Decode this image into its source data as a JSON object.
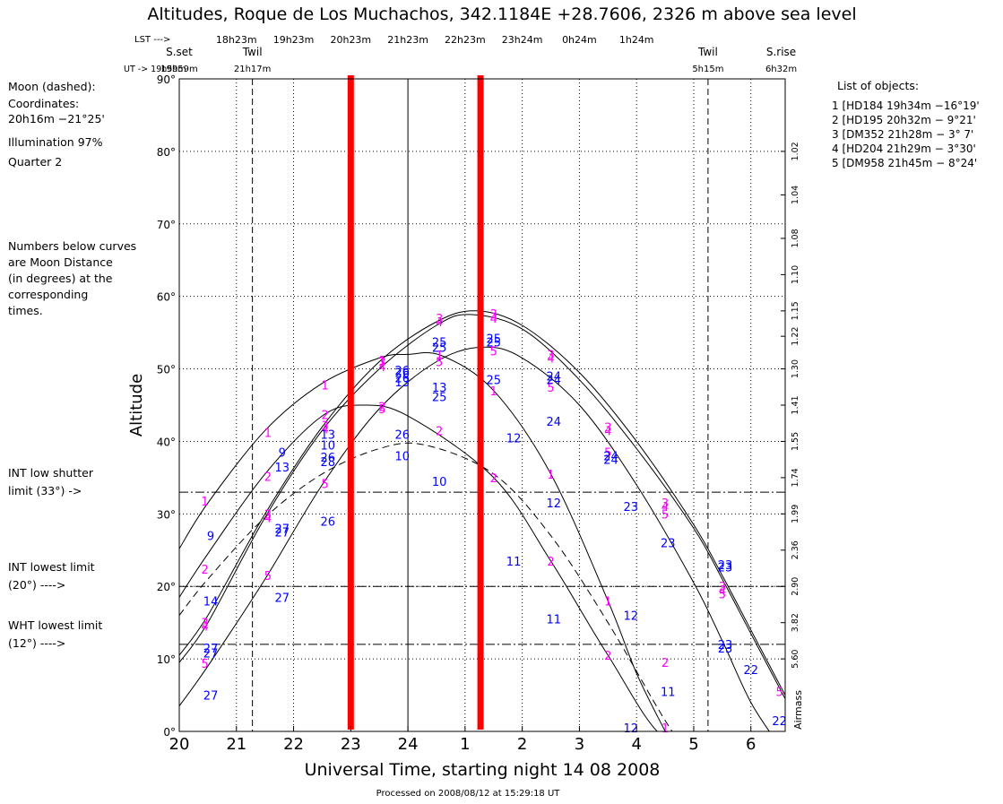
{
  "chart_data": {
    "type": "line",
    "title": "Altitudes, Roque de Los Muchachos, 342.1184E +28.7606, 2326 m above sea level",
    "xlabel": "Universal Time, starting night 14 08 2008",
    "ylabel": "Altitude",
    "y2label": "Airmass",
    "footer": "Processed on 2008/08/12 at 15:29:18 UT",
    "xlim": [
      20.0,
      30.6
    ],
    "ylim": [
      0,
      90
    ],
    "x_ticks": [
      {
        "v": 20,
        "label": "20"
      },
      {
        "v": 21,
        "label": "21"
      },
      {
        "v": 22,
        "label": "22"
      },
      {
        "v": 23,
        "label": "23"
      },
      {
        "v": 24,
        "label": "24"
      },
      {
        "v": 25,
        "label": "1"
      },
      {
        "v": 26,
        "label": "2"
      },
      {
        "v": 27,
        "label": "3"
      },
      {
        "v": 28,
        "label": "4"
      },
      {
        "v": 29,
        "label": "5"
      },
      {
        "v": 30,
        "label": "6"
      }
    ],
    "y_ticks": [
      {
        "v": 0,
        "label": "0°"
      },
      {
        "v": 10,
        "label": "10°"
      },
      {
        "v": 20,
        "label": "20°"
      },
      {
        "v": 30,
        "label": "30°"
      },
      {
        "v": 40,
        "label": "40°"
      },
      {
        "v": 50,
        "label": "50°"
      },
      {
        "v": 60,
        "label": "60°"
      },
      {
        "v": 70,
        "label": "70°"
      },
      {
        "v": 80,
        "label": "80°"
      },
      {
        "v": 90,
        "label": "90°"
      }
    ],
    "airmass_ticks": [
      {
        "alt": 80,
        "label": "1.02"
      },
      {
        "alt": 74,
        "label": "1.04"
      },
      {
        "alt": 68,
        "label": "1.08"
      },
      {
        "alt": 63,
        "label": "1.10"
      },
      {
        "alt": 58,
        "label": "1.15"
      },
      {
        "alt": 54.5,
        "label": "1.22"
      },
      {
        "alt": 50,
        "label": "1.30"
      },
      {
        "alt": 45,
        "label": "1.41"
      },
      {
        "alt": 40,
        "label": "1.55"
      },
      {
        "alt": 35,
        "label": "1.74"
      },
      {
        "alt": 30,
        "label": "1.99"
      },
      {
        "alt": 25,
        "label": "2.36"
      },
      {
        "alt": 20,
        "label": "2.90"
      },
      {
        "alt": 15,
        "label": "3.82"
      },
      {
        "alt": 10,
        "label": "5.60"
      }
    ],
    "lst_ticks": [
      {
        "x": 21.0,
        "label": "18h23m"
      },
      {
        "x": 22.0,
        "label": "19h23m"
      },
      {
        "x": 23.0,
        "label": "20h23m"
      },
      {
        "x": 24.0,
        "label": "21h23m"
      },
      {
        "x": 25.0,
        "label": "22h23m"
      },
      {
        "x": 26.0,
        "label": "23h24m"
      },
      {
        "x": 27.0,
        "label": "0h24m"
      },
      {
        "x": 28.0,
        "label": "1h24m"
      }
    ],
    "events": [
      {
        "x": 20.0,
        "name": "S.set",
        "time": "19h59m",
        "line": false
      },
      {
        "x": 21.28,
        "name": "Twil",
        "time": "21h17m",
        "line": true
      },
      {
        "x": 29.25,
        "name": "Twil",
        "time": "5h15m",
        "line": true
      },
      {
        "x": 30.53,
        "name": "S.rise",
        "time": "6h32m",
        "line": false
      }
    ],
    "lst_header": "LST --->",
    "ut_header": "UT -> 19h59m",
    "limits": [
      {
        "alt": 33,
        "label1": "INT low shutter",
        "label2": "limit (33°) ->"
      },
      {
        "alt": 20,
        "label1": "INT lowest limit",
        "label2": "(20°) ---->"
      },
      {
        "alt": 12,
        "label1": "WHT lowest limit",
        "label2": "(12°) ---->"
      }
    ],
    "markers": [
      {
        "x": 23.0,
        "color": "#ff0000"
      },
      {
        "x": 25.27,
        "color": "#ff0000"
      }
    ],
    "midnight_x": 24,
    "colors": {
      "object_label": "#ff00ff",
      "moon_distance": "#0000ff"
    },
    "series": [
      {
        "id": "1",
        "peak_x": 24.6,
        "peak_y": 52,
        "x": [
          20.0,
          20.5,
          21.5,
          22.5,
          23.5,
          24.0,
          24.6,
          25.5,
          26.5,
          27.5,
          28.0,
          28.5
        ],
        "y": [
          25.2,
          31.5,
          41.5,
          48.0,
          51.5,
          52.0,
          51.8,
          47.0,
          35.5,
          18.0,
          8.0,
          0.0
        ]
      },
      {
        "id": "2",
        "peak_x": 23.2,
        "peak_y": 45,
        "x": [
          20.0,
          20.5,
          21.5,
          22.5,
          23.2,
          24.0,
          25.5,
          26.5,
          27.5,
          28.5,
          29.5,
          30.0
        ],
        "y": [
          18.5,
          24.5,
          35.5,
          43.5,
          45.0,
          43.5,
          35.0,
          23.5,
          10.5,
          -1.0,
          -1.0,
          -1.0
        ]
      },
      {
        "id": "3",
        "peak_x": 25.2,
        "peak_y": 58,
        "x": [
          20.0,
          20.5,
          21.5,
          22.5,
          23.5,
          24.5,
          25.2,
          26.0,
          27.0,
          28.0,
          29.0,
          29.5,
          30.0,
          30.6
        ],
        "y": [
          10.5,
          16.0,
          30.0,
          42.0,
          51.0,
          56.5,
          58.0,
          56.0,
          49.5,
          40.0,
          28.5,
          21.5,
          14.0,
          5.0
        ]
      },
      {
        "id": "4",
        "peak_x": 25.1,
        "peak_y": 57.5,
        "x": [
          20.0,
          20.5,
          21.5,
          22.5,
          23.5,
          24.5,
          25.1,
          26.0,
          27.0,
          28.0,
          29.0,
          29.5,
          30.0,
          30.6
        ],
        "y": [
          9.5,
          15.0,
          29.5,
          41.5,
          50.0,
          56.0,
          57.5,
          55.5,
          48.5,
          39.0,
          28.0,
          21.0,
          13.5,
          4.5
        ]
      },
      {
        "id": "5",
        "peak_x": 25.3,
        "peak_y": 53,
        "x": [
          20.0,
          20.5,
          21.5,
          22.5,
          23.5,
          24.5,
          25.3,
          26.0,
          27.0,
          28.0,
          29.0,
          29.5,
          30.0,
          30.5
        ],
        "y": [
          3.5,
          9.0,
          21.0,
          34.0,
          44.5,
          51.0,
          53.0,
          51.5,
          45.0,
          34.0,
          20.5,
          12.5,
          4.0,
          -2.0
        ]
      },
      {
        "id": "moon",
        "peak_x": 24.3,
        "peak_y": 39.5,
        "dashed": true,
        "x": [
          20.0,
          20.5,
          21.5,
          22.5,
          23.5,
          24.3,
          25.5,
          26.5,
          27.5,
          28.5,
          29.0
        ],
        "y": [
          16.0,
          21.0,
          29.5,
          35.5,
          39.0,
          39.5,
          35.5,
          27.0,
          15.0,
          1.5,
          -4.0
        ]
      }
    ],
    "object_labels": [
      {
        "x": 20.45,
        "y": 31.8,
        "t": "1"
      },
      {
        "x": 20.45,
        "y": 22.4,
        "t": "2"
      },
      {
        "x": 20.45,
        "y": 15.0,
        "t": "3"
      },
      {
        "x": 20.45,
        "y": 14.5,
        "t": "4"
      },
      {
        "x": 20.45,
        "y": 9.4,
        "t": "5"
      },
      {
        "x": 21.55,
        "y": 41.2,
        "t": "1"
      },
      {
        "x": 21.55,
        "y": 35.2,
        "t": "2"
      },
      {
        "x": 21.55,
        "y": 30.0,
        "t": "3"
      },
      {
        "x": 21.55,
        "y": 29.5,
        "t": "4"
      },
      {
        "x": 21.55,
        "y": 21.5,
        "t": "5"
      },
      {
        "x": 22.55,
        "y": 47.8,
        "t": "1"
      },
      {
        "x": 22.55,
        "y": 43.7,
        "t": "2"
      },
      {
        "x": 22.55,
        "y": 42.2,
        "t": "3"
      },
      {
        "x": 22.55,
        "y": 41.7,
        "t": "4"
      },
      {
        "x": 22.55,
        "y": 34.2,
        "t": "5"
      },
      {
        "x": 23.55,
        "y": 51.2,
        "t": "1"
      },
      {
        "x": 23.55,
        "y": 44.8,
        "t": "2"
      },
      {
        "x": 23.55,
        "y": 51.0,
        "t": "3"
      },
      {
        "x": 23.55,
        "y": 50.3,
        "t": "4"
      },
      {
        "x": 23.55,
        "y": 44.5,
        "t": "5"
      },
      {
        "x": 24.55,
        "y": 51.9,
        "t": "1"
      },
      {
        "x": 24.55,
        "y": 41.5,
        "t": "2"
      },
      {
        "x": 24.55,
        "y": 57.0,
        "t": "3"
      },
      {
        "x": 24.55,
        "y": 56.5,
        "t": "4"
      },
      {
        "x": 24.55,
        "y": 51.0,
        "t": "5"
      },
      {
        "x": 25.5,
        "y": 47.0,
        "t": "1"
      },
      {
        "x": 25.5,
        "y": 35.0,
        "t": "2"
      },
      {
        "x": 25.5,
        "y": 57.6,
        "t": "3"
      },
      {
        "x": 25.5,
        "y": 57.0,
        "t": "4"
      },
      {
        "x": 25.5,
        "y": 52.5,
        "t": "5"
      },
      {
        "x": 26.5,
        "y": 35.5,
        "t": "1"
      },
      {
        "x": 26.5,
        "y": 23.5,
        "t": "2"
      },
      {
        "x": 26.5,
        "y": 52.0,
        "t": "3"
      },
      {
        "x": 26.5,
        "y": 51.5,
        "t": "4"
      },
      {
        "x": 26.5,
        "y": 47.5,
        "t": "5"
      },
      {
        "x": 27.5,
        "y": 18.0,
        "t": "1"
      },
      {
        "x": 27.5,
        "y": 10.5,
        "t": "2"
      },
      {
        "x": 27.5,
        "y": 42.0,
        "t": "3"
      },
      {
        "x": 27.5,
        "y": 41.5,
        "t": "4"
      },
      {
        "x": 27.5,
        "y": 38.5,
        "t": "5"
      },
      {
        "x": 28.5,
        "y": 0.5,
        "t": "1"
      },
      {
        "x": 28.5,
        "y": 9.5,
        "t": "2"
      },
      {
        "x": 28.5,
        "y": 31.5,
        "t": "3"
      },
      {
        "x": 28.5,
        "y": 31.0,
        "t": "4"
      },
      {
        "x": 28.5,
        "y": 30.0,
        "t": "5"
      },
      {
        "x": 29.5,
        "y": 20.0,
        "t": "3"
      },
      {
        "x": 29.5,
        "y": 19.5,
        "t": "4"
      },
      {
        "x": 29.5,
        "y": 19.0,
        "t": "5"
      },
      {
        "x": 30.5,
        "y": 5.5,
        "t": "5"
      }
    ],
    "distance_labels": [
      {
        "x": 20.55,
        "y": 27.0,
        "t": "9"
      },
      {
        "x": 20.55,
        "y": 18.0,
        "t": "14"
      },
      {
        "x": 20.55,
        "y": 11.5,
        "t": "27"
      },
      {
        "x": 20.55,
        "y": 10.8,
        "t": "27"
      },
      {
        "x": 20.55,
        "y": 5.0,
        "t": "27"
      },
      {
        "x": 21.8,
        "y": 38.5,
        "t": "9"
      },
      {
        "x": 21.8,
        "y": 36.5,
        "t": "13"
      },
      {
        "x": 21.8,
        "y": 28.0,
        "t": "27"
      },
      {
        "x": 21.8,
        "y": 27.5,
        "t": "27"
      },
      {
        "x": 21.8,
        "y": 18.5,
        "t": "27"
      },
      {
        "x": 22.6,
        "y": 41.0,
        "t": "13"
      },
      {
        "x": 22.6,
        "y": 39.5,
        "t": "10"
      },
      {
        "x": 22.6,
        "y": 37.8,
        "t": "26"
      },
      {
        "x": 22.6,
        "y": 37.2,
        "t": "28"
      },
      {
        "x": 22.6,
        "y": 29.0,
        "t": "26"
      },
      {
        "x": 23.9,
        "y": 49.8,
        "t": "26"
      },
      {
        "x": 23.9,
        "y": 48.2,
        "t": "13"
      },
      {
        "x": 23.9,
        "y": 49.5,
        "t": "26"
      },
      {
        "x": 23.9,
        "y": 48.8,
        "t": "26"
      },
      {
        "x": 23.9,
        "y": 41.0,
        "t": "26"
      },
      {
        "x": 23.9,
        "y": 38.0,
        "t": "10"
      },
      {
        "x": 24.55,
        "y": 47.5,
        "t": "13"
      },
      {
        "x": 24.55,
        "y": 34.5,
        "t": "10"
      },
      {
        "x": 24.55,
        "y": 53.7,
        "t": "25"
      },
      {
        "x": 24.55,
        "y": 53.0,
        "t": "25"
      },
      {
        "x": 24.55,
        "y": 46.2,
        "t": "25"
      },
      {
        "x": 25.5,
        "y": 54.2,
        "t": "25"
      },
      {
        "x": 25.5,
        "y": 53.7,
        "t": "25"
      },
      {
        "x": 25.5,
        "y": 48.5,
        "t": "25"
      },
      {
        "x": 26.55,
        "y": 49.0,
        "t": "24"
      },
      {
        "x": 26.55,
        "y": 48.5,
        "t": "24"
      },
      {
        "x": 26.55,
        "y": 42.8,
        "t": "24"
      },
      {
        "x": 25.85,
        "y": 40.5,
        "t": "12"
      },
      {
        "x": 25.85,
        "y": 23.5,
        "t": "11"
      },
      {
        "x": 26.55,
        "y": 31.5,
        "t": "12"
      },
      {
        "x": 26.55,
        "y": 15.5,
        "t": "11"
      },
      {
        "x": 27.55,
        "y": 38.0,
        "t": "24"
      },
      {
        "x": 27.55,
        "y": 37.5,
        "t": "24"
      },
      {
        "x": 27.9,
        "y": 31.0,
        "t": "23"
      },
      {
        "x": 27.9,
        "y": 16.0,
        "t": "12"
      },
      {
        "x": 27.9,
        "y": 0.5,
        "t": "12"
      },
      {
        "x": 28.55,
        "y": 26.0,
        "t": "23"
      },
      {
        "x": 28.55,
        "y": 5.5,
        "t": "11"
      },
      {
        "x": 29.55,
        "y": 23.0,
        "t": "23"
      },
      {
        "x": 29.55,
        "y": 22.7,
        "t": "23"
      },
      {
        "x": 29.55,
        "y": 12.0,
        "t": "23"
      },
      {
        "x": 29.55,
        "y": 11.5,
        "t": "23"
      },
      {
        "x": 30.0,
        "y": 8.5,
        "t": "22"
      },
      {
        "x": 30.5,
        "y": 1.5,
        "t": "22"
      }
    ]
  },
  "moon_info": {
    "heading": "Moon (dashed):",
    "coords_label": "Coordinates:",
    "coords": "20h16m  −21°25'",
    "illumination": "Illumination  97%",
    "quarter": "Quarter     2"
  },
  "note": {
    "lines": [
      "Numbers below curves",
      "are Moon Distance",
      "(in degrees) at the",
      "corresponding",
      "times."
    ]
  },
  "objects": {
    "heading": "List of objects:",
    "items": [
      "1 [HD184 19h34m −16°19'",
      "2 [HD195 20h32m − 9°21'",
      "3 [DM352 21h28m − 3° 7'",
      "4 [HD204 21h29m − 3°30'",
      "5 [DM958 21h45m − 8°24'"
    ]
  }
}
